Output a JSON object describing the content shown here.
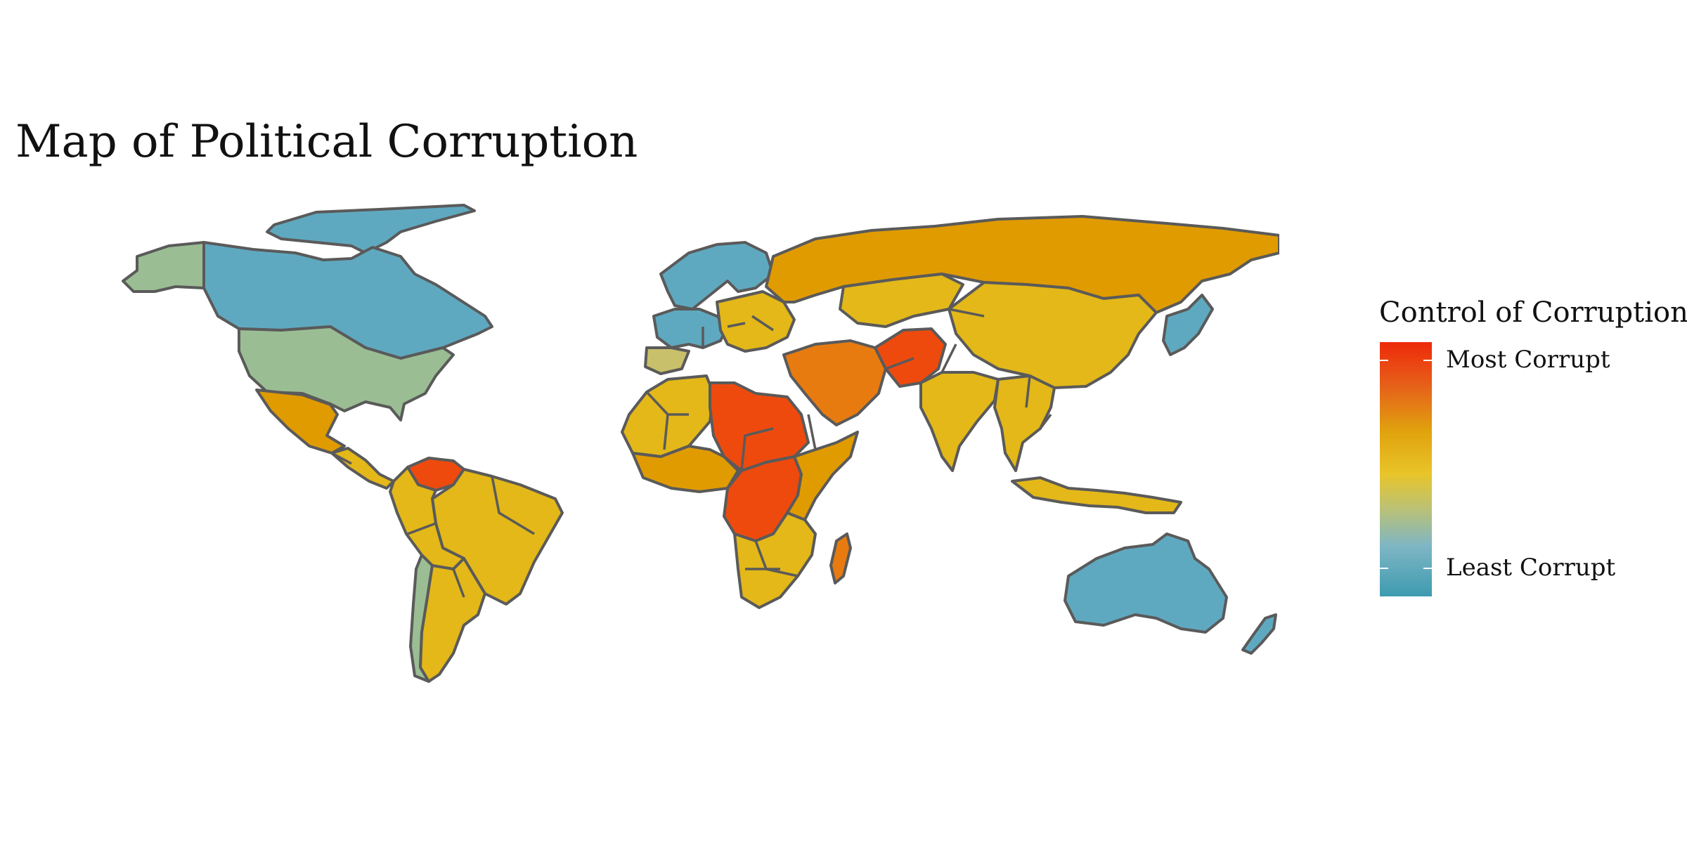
{
  "title": "Map of Political Corruption",
  "legend": {
    "title": "Control of Corruption",
    "top_label": "Most Corrupt",
    "bottom_label": "Least Corrupt",
    "color_stops": [
      "#ee2a0a",
      "#e6631a",
      "#e0a20d",
      "#e8c52a",
      "#b9c178",
      "#7fb6c4",
      "#3d9bb0"
    ]
  },
  "colors": {
    "border": "#5a5a5a",
    "least_corrupt": "#5fa9c0",
    "low": "#9bbd93",
    "mid_low": "#c9c06b",
    "mid": "#e3b818",
    "mid_high": "#e09b00",
    "high": "#e87b10",
    "most_corrupt": "#ee4a0e"
  },
  "regions": [
    {
      "name": "greenland",
      "level": "least_corrupt"
    },
    {
      "name": "alaska",
      "level": "low"
    },
    {
      "name": "canada",
      "level": "least_corrupt"
    },
    {
      "name": "united-states",
      "level": "low"
    },
    {
      "name": "mexico",
      "level": "mid_high"
    },
    {
      "name": "central-america",
      "level": "mid"
    },
    {
      "name": "venezuela",
      "level": "most_corrupt"
    },
    {
      "name": "brazil",
      "level": "mid"
    },
    {
      "name": "andes",
      "level": "mid"
    },
    {
      "name": "chile",
      "level": "low"
    },
    {
      "name": "argentina",
      "level": "mid"
    },
    {
      "name": "scandinavia",
      "level": "least_corrupt"
    },
    {
      "name": "western-europe",
      "level": "least_corrupt"
    },
    {
      "name": "iberia",
      "level": "mid_low"
    },
    {
      "name": "eastern-europe",
      "level": "mid"
    },
    {
      "name": "russia",
      "level": "mid_high"
    },
    {
      "name": "kazakhstan",
      "level": "mid"
    },
    {
      "name": "china",
      "level": "mid"
    },
    {
      "name": "korea-japan",
      "level": "least_corrupt"
    },
    {
      "name": "middle-east",
      "level": "high"
    },
    {
      "name": "afghanistan",
      "level": "most_corrupt"
    },
    {
      "name": "india",
      "level": "mid"
    },
    {
      "name": "southeast-asia",
      "level": "mid"
    },
    {
      "name": "indonesia",
      "level": "mid"
    },
    {
      "name": "north-africa",
      "level": "mid"
    },
    {
      "name": "libya-sudan",
      "level": "most_corrupt"
    },
    {
      "name": "west-africa",
      "level": "mid_high"
    },
    {
      "name": "central-africa",
      "level": "most_corrupt"
    },
    {
      "name": "east-africa",
      "level": "mid_high"
    },
    {
      "name": "southern-africa",
      "level": "mid"
    },
    {
      "name": "madagascar",
      "level": "high"
    },
    {
      "name": "australia",
      "level": "least_corrupt"
    },
    {
      "name": "new-zealand",
      "level": "least_corrupt"
    }
  ]
}
